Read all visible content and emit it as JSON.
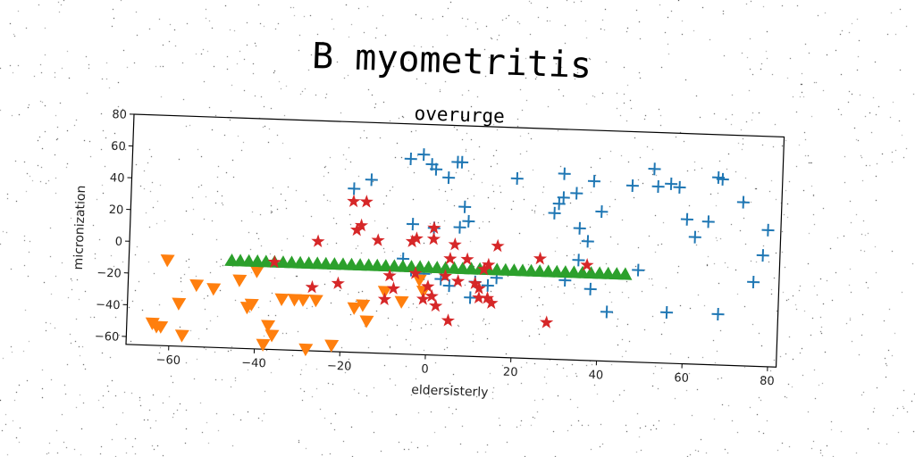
{
  "figure": {
    "suptitle": "B myometritis"
  },
  "chart_data": {
    "type": "scatter",
    "title": "overurge",
    "xlabel": "eldersisterly",
    "ylabel": "micronization",
    "xlim": [
      -70,
      82
    ],
    "ylim": [
      -65,
      80
    ],
    "x_ticks": [
      -60,
      -40,
      -20,
      0,
      20,
      40,
      60,
      80
    ],
    "y_ticks": [
      -60,
      -40,
      -20,
      0,
      20,
      40,
      60,
      80
    ],
    "grid": false,
    "legend": "none",
    "series": [
      {
        "marker": "plus",
        "color": "#1f77b4",
        "points": [
          [
            -18,
            38
          ],
          [
            -14,
            44
          ],
          [
            -5,
            58
          ],
          [
            -2,
            61
          ],
          [
            0,
            55
          ],
          [
            1,
            52
          ],
          [
            6,
            57
          ],
          [
            7,
            57
          ],
          [
            4,
            47
          ],
          [
            8,
            29
          ],
          [
            9,
            20
          ],
          [
            7,
            16
          ],
          [
            1,
            15
          ],
          [
            -4,
            17
          ],
          [
            -6,
            -5
          ],
          [
            -4,
            -12
          ],
          [
            -1,
            -14
          ],
          [
            3,
            -17
          ],
          [
            5,
            -21
          ],
          [
            11,
            -18
          ],
          [
            14,
            -20
          ],
          [
            16,
            -15
          ],
          [
            20,
            48
          ],
          [
            29,
            27
          ],
          [
            30,
            33
          ],
          [
            31,
            37
          ],
          [
            31,
            52
          ],
          [
            34,
            40
          ],
          [
            35,
            18
          ],
          [
            38,
            48
          ],
          [
            37,
            10
          ],
          [
            40,
            29
          ],
          [
            47,
            46
          ],
          [
            52,
            57
          ],
          [
            53,
            46
          ],
          [
            56,
            48
          ],
          [
            58,
            46
          ],
          [
            60,
            26
          ],
          [
            62,
            15
          ],
          [
            65,
            25
          ],
          [
            67,
            53
          ],
          [
            68,
            52
          ],
          [
            73,
            38
          ],
          [
            76,
            -12
          ],
          [
            78,
            5
          ],
          [
            79,
            21
          ],
          [
            38,
            -20
          ],
          [
            42,
            -34
          ],
          [
            56,
            -33
          ],
          [
            68,
            -33
          ],
          [
            49,
            -7
          ],
          [
            35,
            -2
          ],
          [
            32,
            -15
          ],
          [
            10,
            -28
          ]
        ]
      },
      {
        "marker": "triangle_down",
        "color": "#ff7f0e",
        "points": [
          [
            -64,
            -51
          ],
          [
            -63,
            -53
          ],
          [
            -62,
            -53
          ],
          [
            -61,
            -11
          ],
          [
            -58,
            -38
          ],
          [
            -57,
            -58
          ],
          [
            -54,
            -26
          ],
          [
            -50,
            -28
          ],
          [
            -44,
            -22
          ],
          [
            -42,
            -39
          ],
          [
            -41,
            -37
          ],
          [
            -40,
            -16
          ],
          [
            -38,
            -62
          ],
          [
            -37,
            -50
          ],
          [
            -36,
            -56
          ],
          [
            -34,
            -33
          ],
          [
            -31,
            -33
          ],
          [
            -29,
            -33
          ],
          [
            -28,
            -64
          ],
          [
            -26,
            -33
          ],
          [
            -22,
            -61
          ],
          [
            -17,
            -37
          ],
          [
            -15,
            -35
          ],
          [
            -14,
            -45
          ],
          [
            -10,
            -26
          ],
          [
            -6,
            -32
          ],
          [
            -2,
            -18
          ],
          [
            -1,
            -25
          ]
        ]
      },
      {
        "marker": "triangle_up",
        "color": "#2ca02c",
        "points": [
          [
            -46,
            -10
          ],
          [
            -44,
            -10
          ],
          [
            -42,
            -10
          ],
          [
            -40,
            -10
          ],
          [
            -38,
            -10
          ],
          [
            -36,
            -10
          ],
          [
            -34,
            -10
          ],
          [
            -32,
            -10
          ],
          [
            -30,
            -10
          ],
          [
            -28,
            -10
          ],
          [
            -26,
            -10
          ],
          [
            -24,
            -10
          ],
          [
            -22,
            -10
          ],
          [
            -20,
            -10
          ],
          [
            -18,
            -10
          ],
          [
            -16,
            -10
          ],
          [
            -14,
            -10
          ],
          [
            -12,
            -10
          ],
          [
            -10,
            -10
          ],
          [
            -8,
            -10
          ],
          [
            -6,
            -10
          ],
          [
            -4,
            -10
          ],
          [
            -2,
            -10
          ],
          [
            0,
            -10
          ],
          [
            2,
            -10
          ],
          [
            4,
            -10
          ],
          [
            6,
            -10
          ],
          [
            8,
            -10
          ],
          [
            10,
            -10
          ],
          [
            12,
            -10
          ],
          [
            14,
            -10
          ],
          [
            16,
            -10
          ],
          [
            18,
            -10
          ],
          [
            20,
            -10
          ],
          [
            22,
            -10
          ],
          [
            24,
            -10
          ],
          [
            26,
            -10
          ],
          [
            28,
            -10
          ],
          [
            30,
            -10
          ],
          [
            32,
            -10
          ],
          [
            34,
            -10
          ],
          [
            36,
            -10
          ],
          [
            38,
            -10
          ],
          [
            40,
            -10
          ],
          [
            42,
            -10
          ],
          [
            44,
            -10
          ],
          [
            46,
            -10
          ]
        ]
      },
      {
        "marker": "star",
        "color": "#d62728",
        "points": [
          [
            -36,
            -10
          ],
          [
            -26,
            4
          ],
          [
            -27,
            -25
          ],
          [
            -21,
            -22
          ],
          [
            -18,
            30
          ],
          [
            -15,
            30
          ],
          [
            -17,
            12
          ],
          [
            -16,
            15
          ],
          [
            -12,
            6
          ],
          [
            -10,
            -31
          ],
          [
            -9,
            -16
          ],
          [
            -8,
            -24
          ],
          [
            -4,
            6
          ],
          [
            -3,
            8
          ],
          [
            -3,
            -14
          ],
          [
            1,
            8
          ],
          [
            1,
            15
          ],
          [
            0,
            -22
          ],
          [
            -1,
            -30
          ],
          [
            1,
            -28
          ],
          [
            2,
            -34
          ],
          [
            4,
            -15
          ],
          [
            5,
            -4
          ],
          [
            6,
            5
          ],
          [
            7,
            -18
          ],
          [
            9,
            -4
          ],
          [
            11,
            -19
          ],
          [
            12,
            -22
          ],
          [
            12,
            -28
          ],
          [
            14,
            -7
          ],
          [
            13,
            -10
          ],
          [
            14,
            -28
          ],
          [
            15,
            -31
          ],
          [
            16,
            5
          ],
          [
            5,
            -43
          ],
          [
            26,
            -2
          ],
          [
            28,
            -42
          ],
          [
            37,
            -5
          ]
        ]
      }
    ]
  }
}
